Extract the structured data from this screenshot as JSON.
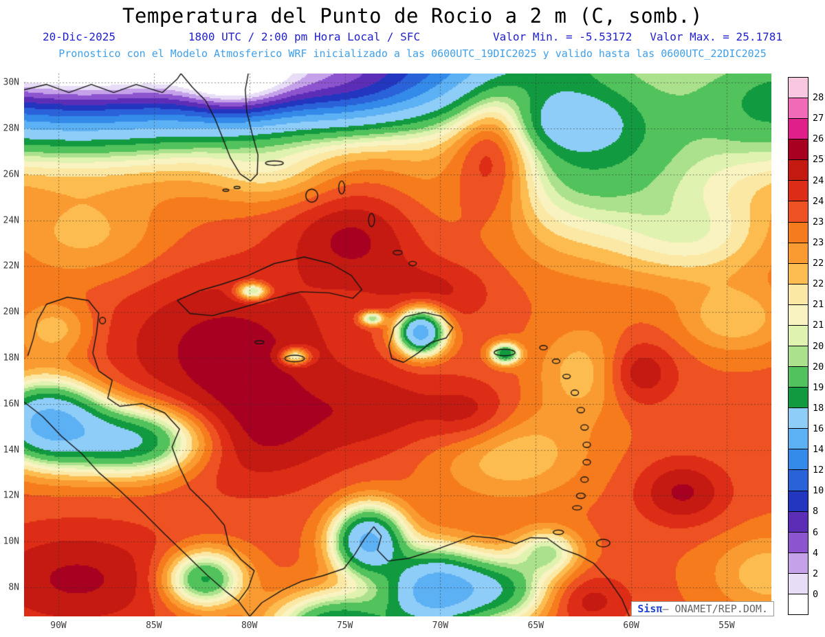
{
  "header": {
    "title": "Temperatura del Punto de Rocio a 2 m (C, somb.)",
    "line1": {
      "date": "20-Dic-2025",
      "time": "1800 UTC / 2:00 pm Hora Local / SFC",
      "min_label": "Valor Min. = -5.53172",
      "max_label": "Valor Max. = 25.1781"
    },
    "line2": "Pronostico con el Modelo Atmosferico WRF inicializado a las 0600UTC_19DIC2025 y valido hasta las  0600UTC_22DIC2025"
  },
  "map": {
    "lat_ticks": [
      "30N",
      "28N",
      "26N",
      "24N",
      "22N",
      "20N",
      "18N",
      "16N",
      "14N",
      "12N",
      "10N",
      "8N"
    ],
    "lon_ticks": [
      "90W",
      "85W",
      "80W",
      "75W",
      "70W",
      "65W",
      "60W",
      "55W"
    ],
    "field_base": 23.6,
    "field_blobs": [
      [
        0.05,
        -0.15,
        0.28,
        0.18,
        -45
      ],
      [
        0.28,
        0.0,
        0.07,
        0.07,
        -12
      ],
      [
        0.27,
        -0.05,
        0.4,
        0.12,
        -10
      ],
      [
        0.42,
        0.02,
        0.12,
        0.07,
        -7
      ],
      [
        0.55,
        -0.08,
        0.15,
        0.13,
        -4
      ],
      [
        0.76,
        0.14,
        0.17,
        0.16,
        -4.6
      ],
      [
        0.73,
        0.09,
        0.07,
        0.05,
        -2.8
      ],
      [
        1.02,
        0.05,
        0.12,
        0.12,
        -4.5
      ],
      [
        0.9,
        0.3,
        0.1,
        0.08,
        -1.8
      ],
      [
        0.53,
        0.475,
        0.03,
        0.038,
        -9
      ],
      [
        0.643,
        0.515,
        0.018,
        0.018,
        -5.5
      ],
      [
        0.362,
        0.52,
        0.018,
        0.015,
        -3.5
      ],
      [
        0.305,
        0.4,
        0.02,
        0.015,
        -4
      ],
      [
        0.465,
        0.45,
        0.015,
        0.012,
        -4
      ],
      [
        0.03,
        0.64,
        0.07,
        0.07,
        -8
      ],
      [
        0.145,
        0.675,
        0.09,
        0.06,
        -6
      ],
      [
        0.24,
        0.93,
        0.05,
        0.05,
        -5
      ],
      [
        0.46,
        0.86,
        0.045,
        0.06,
        -8
      ],
      [
        0.545,
        0.95,
        0.06,
        0.07,
        -8
      ],
      [
        0.63,
        0.95,
        0.07,
        0.06,
        -5
      ],
      [
        0.7,
        0.88,
        0.04,
        0.04,
        -3
      ],
      [
        0.42,
        1.02,
        0.08,
        0.06,
        -6
      ],
      [
        0.65,
        0.7,
        0.1,
        0.08,
        -1.6
      ],
      [
        0.75,
        0.55,
        0.06,
        0.08,
        -1.5
      ],
      [
        0.95,
        0.45,
        0.07,
        0.06,
        -1.5
      ],
      [
        1.0,
        0.92,
        0.08,
        0.07,
        -1.5
      ],
      [
        0.33,
        0.18,
        0.08,
        0.06,
        -1.3
      ],
      [
        0.08,
        0.3,
        0.1,
        0.08,
        -1.2
      ],
      [
        0.04,
        0.47,
        0.05,
        0.05,
        -1.5
      ],
      [
        0.27,
        0.5,
        0.16,
        0.14,
        1.6
      ],
      [
        0.3,
        0.67,
        0.12,
        0.1,
        1.3
      ],
      [
        0.44,
        0.3,
        0.09,
        0.09,
        1.5
      ],
      [
        0.48,
        0.62,
        0.1,
        0.08,
        1.0
      ],
      [
        0.6,
        0.63,
        0.06,
        0.06,
        1.2
      ],
      [
        0.82,
        0.55,
        0.05,
        0.06,
        1.5
      ],
      [
        0.88,
        0.77,
        0.06,
        0.06,
        1.5
      ],
      [
        0.07,
        0.93,
        0.14,
        0.1,
        1.5
      ],
      [
        0.55,
        0.4,
        0.08,
        0.06,
        1.0
      ],
      [
        0.75,
        0.97,
        0.06,
        0.05,
        1.2
      ],
      [
        0.63,
        0.12,
        0.06,
        0.14,
        3.5
      ]
    ]
  },
  "colorbar": {
    "labels_top_to_bottom": [
      "28",
      "27",
      "26",
      "25",
      "24.5",
      "24",
      "23.5",
      "23",
      "22.5",
      "22",
      "21.5",
      "21",
      "20.5",
      "20",
      "19",
      "18",
      "16",
      "14",
      "12",
      "10",
      "8",
      "6",
      "4",
      "2",
      "0"
    ],
    "colors_top_to_bottom": [
      "#f8c8e0",
      "#f06ab8",
      "#e01f8a",
      "#a80021",
      "#c41a12",
      "#de2d16",
      "#ee5222",
      "#f67b1c",
      "#f99b31",
      "#fcbc4f",
      "#fbe8a5",
      "#f8f3c0",
      "#dff2af",
      "#abe18c",
      "#52c25c",
      "#129a40",
      "#8ecdf8",
      "#5cb0f4",
      "#338ae9",
      "#2a62d9",
      "#2336c0",
      "#5c2eb8",
      "#8c54cf",
      "#c4a1e8",
      "#e8ddf6",
      "#ffffff"
    ]
  },
  "watermark": {
    "brand": "Sisπ",
    "rest": "– ONAMET/REP.DOM."
  },
  "chart_data": {
    "type": "heatmap",
    "title": "Temperatura del Punto de Rocio a 2 m (C, somb.)",
    "value_min": -5.53172,
    "value_max": 25.1781,
    "levels": [
      0,
      2,
      4,
      6,
      8,
      10,
      12,
      14,
      16,
      18,
      19,
      20,
      20.5,
      21,
      21.5,
      22,
      22.5,
      23,
      23.5,
      24,
      24.5,
      25,
      26,
      27,
      28
    ],
    "x_ticks": [
      "90W",
      "85W",
      "80W",
      "75W",
      "70W",
      "65W",
      "60W",
      "55W"
    ],
    "y_ticks": [
      "30N",
      "28N",
      "26N",
      "24N",
      "22N",
      "20N",
      "18N",
      "16N",
      "14N",
      "12N",
      "10N",
      "8N"
    ],
    "legend_position": "right"
  }
}
